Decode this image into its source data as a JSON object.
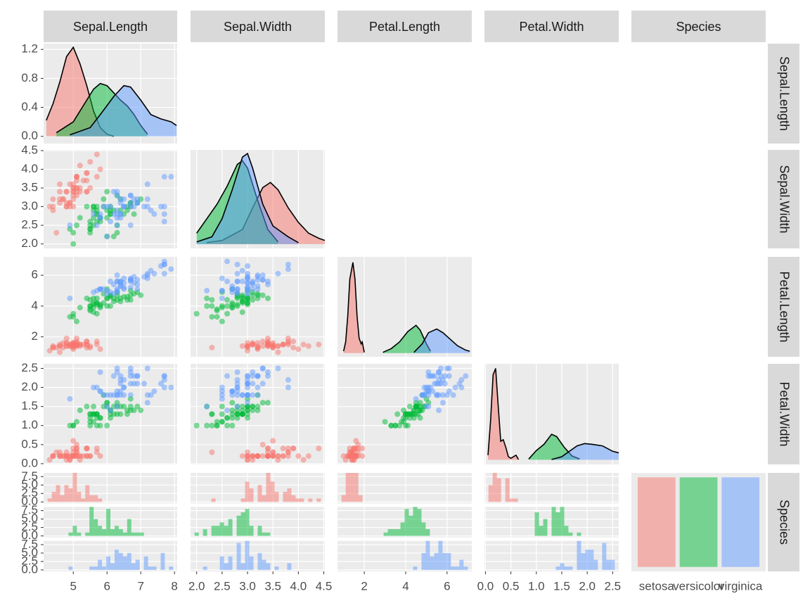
{
  "chart_data": {
    "type": "pairs",
    "variables": [
      "Sepal.Length",
      "Sepal.Width",
      "Petal.Length",
      "Petal.Width",
      "Species"
    ],
    "series": [
      {
        "name": "setosa",
        "color": "#F8766D",
        "values": [
          [
            5.1,
            4.9,
            4.7,
            4.6,
            5.0,
            5.4,
            4.6,
            5.0,
            4.4,
            4.9,
            5.4,
            4.8,
            4.8,
            4.3,
            5.8,
            5.7,
            5.4,
            5.1,
            5.7,
            5.1,
            5.4,
            5.1,
            4.6,
            5.1,
            4.8,
            5.0,
            5.0,
            5.2,
            5.2,
            4.7,
            4.8,
            5.4,
            5.2,
            5.5,
            4.9,
            5.0,
            5.5,
            4.9,
            4.4,
            5.1,
            5.0,
            4.5,
            4.4,
            5.0,
            5.1,
            4.8,
            5.1,
            4.6,
            5.3,
            5.0
          ],
          [
            3.5,
            3.0,
            3.2,
            3.1,
            3.6,
            3.9,
            3.4,
            3.4,
            2.9,
            3.1,
            3.7,
            3.4,
            3.0,
            3.0,
            4.0,
            4.4,
            3.9,
            3.5,
            3.8,
            3.8,
            3.4,
            3.7,
            3.6,
            3.3,
            3.4,
            3.0,
            3.4,
            3.5,
            3.4,
            3.2,
            3.1,
            3.4,
            4.1,
            4.2,
            3.1,
            3.2,
            3.5,
            3.6,
            3.0,
            3.4,
            3.5,
            2.3,
            3.2,
            3.5,
            3.8,
            3.0,
            3.8,
            3.2,
            3.7,
            3.3
          ],
          [
            1.4,
            1.4,
            1.3,
            1.5,
            1.4,
            1.7,
            1.4,
            1.5,
            1.4,
            1.5,
            1.5,
            1.6,
            1.4,
            1.1,
            1.2,
            1.5,
            1.3,
            1.4,
            1.7,
            1.5,
            1.7,
            1.5,
            1.0,
            1.7,
            1.9,
            1.6,
            1.6,
            1.5,
            1.4,
            1.6,
            1.6,
            1.5,
            1.5,
            1.4,
            1.5,
            1.2,
            1.3,
            1.4,
            1.3,
            1.5,
            1.3,
            1.3,
            1.3,
            1.6,
            1.9,
            1.4,
            1.6,
            1.4,
            1.5,
            1.4
          ],
          [
            0.2,
            0.2,
            0.2,
            0.2,
            0.2,
            0.4,
            0.3,
            0.2,
            0.2,
            0.1,
            0.2,
            0.2,
            0.1,
            0.1,
            0.2,
            0.4,
            0.4,
            0.3,
            0.3,
            0.3,
            0.2,
            0.4,
            0.2,
            0.5,
            0.2,
            0.2,
            0.4,
            0.2,
            0.2,
            0.2,
            0.2,
            0.4,
            0.1,
            0.2,
            0.2,
            0.2,
            0.2,
            0.1,
            0.2,
            0.2,
            0.3,
            0.3,
            0.2,
            0.6,
            0.4,
            0.3,
            0.2,
            0.2,
            0.2,
            0.2
          ]
        ]
      },
      {
        "name": "versicolor",
        "color": "#00BA38",
        "values": [
          [
            7.0,
            6.4,
            6.9,
            5.5,
            6.5,
            5.7,
            6.3,
            4.9,
            6.6,
            5.2,
            5.0,
            5.9,
            6.0,
            6.1,
            5.6,
            6.7,
            5.6,
            5.8,
            6.2,
            5.6,
            5.9,
            6.1,
            6.3,
            6.1,
            6.4,
            6.6,
            6.8,
            6.7,
            6.0,
            5.7,
            5.5,
            5.5,
            5.8,
            6.0,
            5.4,
            6.0,
            6.7,
            6.3,
            5.6,
            5.5,
            5.5,
            6.1,
            5.8,
            5.0,
            5.6,
            5.7,
            5.7,
            6.2,
            5.1,
            5.7
          ],
          [
            3.2,
            3.2,
            3.1,
            2.3,
            2.8,
            2.8,
            3.3,
            2.4,
            2.9,
            2.7,
            2.0,
            3.0,
            2.2,
            2.9,
            2.9,
            3.1,
            3.0,
            2.7,
            2.2,
            2.5,
            3.2,
            2.8,
            2.5,
            2.8,
            2.9,
            3.0,
            2.8,
            3.0,
            2.9,
            2.6,
            2.4,
            2.4,
            2.7,
            2.7,
            3.0,
            3.4,
            3.1,
            2.3,
            3.0,
            2.5,
            2.6,
            3.0,
            2.6,
            2.3,
            2.7,
            3.0,
            2.9,
            2.9,
            2.5,
            2.8
          ],
          [
            4.7,
            4.5,
            4.9,
            4.0,
            4.6,
            4.5,
            4.7,
            3.3,
            4.6,
            3.9,
            3.5,
            4.2,
            4.0,
            4.7,
            3.6,
            4.4,
            4.5,
            4.1,
            4.5,
            3.9,
            4.8,
            4.0,
            4.9,
            4.7,
            4.3,
            4.4,
            4.8,
            5.0,
            4.5,
            3.5,
            3.8,
            3.7,
            3.9,
            5.1,
            4.5,
            4.5,
            4.7,
            4.4,
            4.1,
            4.0,
            4.4,
            4.6,
            4.0,
            3.3,
            4.2,
            4.2,
            4.2,
            4.3,
            3.0,
            4.1
          ],
          [
            1.4,
            1.5,
            1.5,
            1.3,
            1.5,
            1.3,
            1.6,
            1.0,
            1.3,
            1.4,
            1.0,
            1.5,
            1.0,
            1.4,
            1.3,
            1.4,
            1.5,
            1.0,
            1.5,
            1.1,
            1.8,
            1.3,
            1.5,
            1.2,
            1.3,
            1.4,
            1.4,
            1.7,
            1.5,
            1.0,
            1.1,
            1.0,
            1.2,
            1.6,
            1.5,
            1.6,
            1.5,
            1.3,
            1.3,
            1.3,
            1.2,
            1.4,
            1.2,
            1.0,
            1.3,
            1.2,
            1.3,
            1.3,
            1.1,
            1.3
          ]
        ]
      },
      {
        "name": "virginica",
        "color": "#619CFF",
        "values": [
          [
            6.3,
            5.8,
            7.1,
            6.3,
            6.5,
            7.6,
            4.9,
            7.3,
            6.7,
            7.2,
            6.5,
            6.4,
            6.8,
            5.7,
            5.8,
            6.4,
            6.5,
            7.7,
            7.7,
            6.0,
            6.9,
            5.6,
            7.7,
            6.3,
            6.7,
            7.2,
            6.2,
            6.1,
            6.4,
            7.2,
            7.4,
            7.9,
            6.4,
            6.3,
            6.1,
            7.7,
            6.3,
            6.4,
            6.0,
            6.9,
            6.7,
            6.9,
            5.8,
            6.8,
            6.7,
            6.7,
            6.3,
            6.5,
            6.2,
            5.9
          ],
          [
            3.3,
            2.7,
            3.0,
            2.9,
            3.0,
            3.0,
            2.5,
            2.9,
            2.5,
            3.6,
            3.2,
            2.7,
            3.0,
            2.5,
            2.8,
            3.2,
            3.0,
            3.8,
            2.6,
            2.2,
            3.2,
            2.8,
            2.8,
            2.7,
            3.3,
            3.2,
            2.8,
            3.0,
            2.8,
            3.0,
            2.8,
            3.8,
            2.8,
            2.8,
            2.6,
            3.0,
            3.4,
            3.1,
            3.0,
            3.1,
            3.1,
            3.1,
            2.7,
            3.2,
            3.3,
            3.0,
            2.5,
            3.0,
            3.4,
            3.0
          ],
          [
            6.0,
            5.1,
            5.9,
            5.6,
            5.8,
            6.6,
            4.5,
            6.3,
            5.8,
            6.1,
            5.1,
            5.3,
            5.5,
            5.0,
            5.1,
            5.3,
            5.5,
            6.7,
            6.9,
            5.0,
            5.7,
            4.9,
            6.7,
            4.9,
            5.7,
            6.0,
            4.8,
            4.9,
            5.6,
            5.8,
            6.1,
            6.4,
            5.6,
            5.1,
            5.6,
            6.1,
            5.6,
            5.5,
            4.8,
            5.4,
            5.6,
            5.1,
            5.1,
            5.9,
            5.7,
            5.2,
            5.0,
            5.2,
            5.4,
            5.1
          ],
          [
            2.5,
            1.9,
            2.1,
            1.8,
            2.2,
            2.1,
            1.7,
            1.8,
            1.8,
            2.5,
            2.0,
            1.9,
            2.1,
            2.0,
            2.4,
            2.3,
            1.8,
            2.2,
            2.3,
            1.5,
            2.3,
            2.0,
            2.0,
            1.8,
            2.1,
            1.8,
            1.8,
            1.8,
            2.1,
            1.6,
            1.9,
            2.0,
            2.2,
            1.5,
            1.4,
            2.3,
            2.4,
            1.8,
            1.8,
            2.1,
            2.4,
            2.3,
            1.9,
            2.3,
            2.5,
            2.3,
            1.9,
            2.0,
            2.3,
            1.8
          ]
        ]
      }
    ],
    "axes": [
      {
        "xlim": [
          4.12,
          8.08
        ],
        "xticks": [
          5,
          6,
          7,
          8
        ]
      },
      {
        "xlim": [
          1.88,
          4.52
        ],
        "xticks": [
          {
            "value": 2,
            "label": "2.0"
          },
          2.5,
          {
            "value": 3,
            "label": "3.0"
          },
          3.5,
          {
            "value": 4,
            "label": "4.0"
          },
          4.5
        ]
      },
      {
        "xlim": [
          0.705,
          7.195
        ],
        "xticks": [
          2,
          4,
          6
        ]
      },
      {
        "xlim": [
          -0.02,
          2.62
        ],
        "xticks": [
          {
            "value": 0,
            "label": "0.0"
          },
          0.5,
          {
            "value": 1,
            "label": "1.0"
          },
          1.5,
          {
            "value": 2,
            "label": "2.0"
          },
          2.5
        ]
      }
    ],
    "density_ylim": [
      [
        -0.1,
        1.28
      ],
      [
        -0.06,
        1.3
      ],
      [
        -0.1,
        2.6
      ],
      [
        -0.3,
        6.2
      ]
    ],
    "density_yticks": [
      {
        "value": 0,
        "label": "0.0"
      },
      0.4,
      0.8,
      1.2
    ],
    "densities": [
      [
        {
          "x": [
            4.2,
            4.4,
            4.6,
            4.8,
            5.0,
            5.2,
            5.4,
            5.6,
            5.8,
            6.0,
            6.2
          ],
          "y": [
            0.22,
            0.45,
            0.75,
            1.1,
            1.23,
            1.0,
            0.7,
            0.35,
            0.12,
            0.03,
            0
          ]
        },
        {
          "x": [
            4.5,
            5.0,
            5.4,
            5.6,
            5.8,
            6.0,
            6.2,
            6.4,
            6.6,
            6.8,
            7.0,
            7.2
          ],
          "y": [
            0.05,
            0.2,
            0.5,
            0.65,
            0.73,
            0.7,
            0.6,
            0.5,
            0.42,
            0.3,
            0.15,
            0.03
          ]
        },
        {
          "x": [
            4.9,
            5.5,
            5.8,
            6.2,
            6.5,
            6.7,
            7.0,
            7.3,
            7.6,
            7.9,
            8.06
          ],
          "y": [
            0.02,
            0.12,
            0.3,
            0.55,
            0.7,
            0.68,
            0.5,
            0.3,
            0.24,
            0.2,
            0.15
          ]
        }
      ],
      [
        {
          "x": [
            2.2,
            2.5,
            2.9,
            3.1,
            3.3,
            3.45,
            3.6,
            3.8,
            4.0,
            4.2,
            4.4,
            4.52
          ],
          "y": [
            0.02,
            0.05,
            0.2,
            0.5,
            0.78,
            0.85,
            0.75,
            0.5,
            0.3,
            0.15,
            0.08,
            0.05
          ]
        },
        {
          "x": [
            2.0,
            2.2,
            2.4,
            2.6,
            2.8,
            2.9,
            3.0,
            3.2,
            3.4,
            3.6
          ],
          "y": [
            0.15,
            0.35,
            0.55,
            0.8,
            1.1,
            1.15,
            1.05,
            0.6,
            0.2,
            0.03
          ]
        },
        {
          "x": [
            2.0,
            2.3,
            2.5,
            2.7,
            2.9,
            3.0,
            3.1,
            3.3,
            3.5,
            3.8,
            4.0
          ],
          "y": [
            0.03,
            0.1,
            0.35,
            0.75,
            1.2,
            1.25,
            1.05,
            0.55,
            0.25,
            0.1,
            0.02
          ]
        }
      ],
      [
        {
          "x": [
            1.0,
            1.1,
            1.2,
            1.3,
            1.45,
            1.55,
            1.65,
            1.75,
            1.85,
            1.9,
            2.0
          ],
          "y": [
            0.05,
            0.3,
            1.0,
            2.0,
            2.45,
            2.0,
            1.0,
            0.4,
            0.25,
            0.3,
            0.02
          ]
        },
        {
          "x": [
            2.9,
            3.3,
            3.7,
            4.1,
            4.5,
            4.7,
            5.0,
            5.2
          ],
          "y": [
            0.02,
            0.12,
            0.3,
            0.58,
            0.75,
            0.62,
            0.25,
            0.05
          ]
        },
        {
          "x": [
            4.4,
            4.8,
            5.1,
            5.5,
            5.8,
            6.1,
            6.5,
            6.9,
            7.1
          ],
          "y": [
            0.02,
            0.25,
            0.55,
            0.65,
            0.55,
            0.4,
            0.2,
            0.08,
            0.05
          ]
        }
      ],
      [
        {
          "x": [
            0.05,
            0.1,
            0.15,
            0.2,
            0.25,
            0.3,
            0.35,
            0.4,
            0.45,
            0.5,
            0.6,
            0.65
          ],
          "y": [
            0.3,
            2.5,
            5.5,
            5.9,
            3.5,
            1.2,
            1.3,
            0.8,
            0.2,
            0.1,
            0.3,
            0.02
          ]
        },
        {
          "x": [
            0.85,
            1.0,
            1.15,
            1.3,
            1.4,
            1.55,
            1.7,
            1.85
          ],
          "y": [
            0.05,
            0.6,
            1.0,
            1.65,
            1.5,
            0.8,
            0.25,
            0.05
          ]
        },
        {
          "x": [
            1.3,
            1.5,
            1.8,
            1.95,
            2.1,
            2.3,
            2.5,
            2.62
          ],
          "y": [
            0.02,
            0.2,
            0.9,
            1.05,
            1.0,
            0.9,
            0.55,
            0.45
          ]
        }
      ]
    ],
    "bins": 30,
    "count_ylim": [
      -0.44,
      8.6
    ],
    "count_yticks": [
      {
        "value": 0,
        "label": "0.0"
      },
      2.5,
      {
        "value": 5,
        "label": "5.0"
      },
      7.5
    ],
    "bar_ylim": [
      -2.5,
      52.5
    ]
  }
}
